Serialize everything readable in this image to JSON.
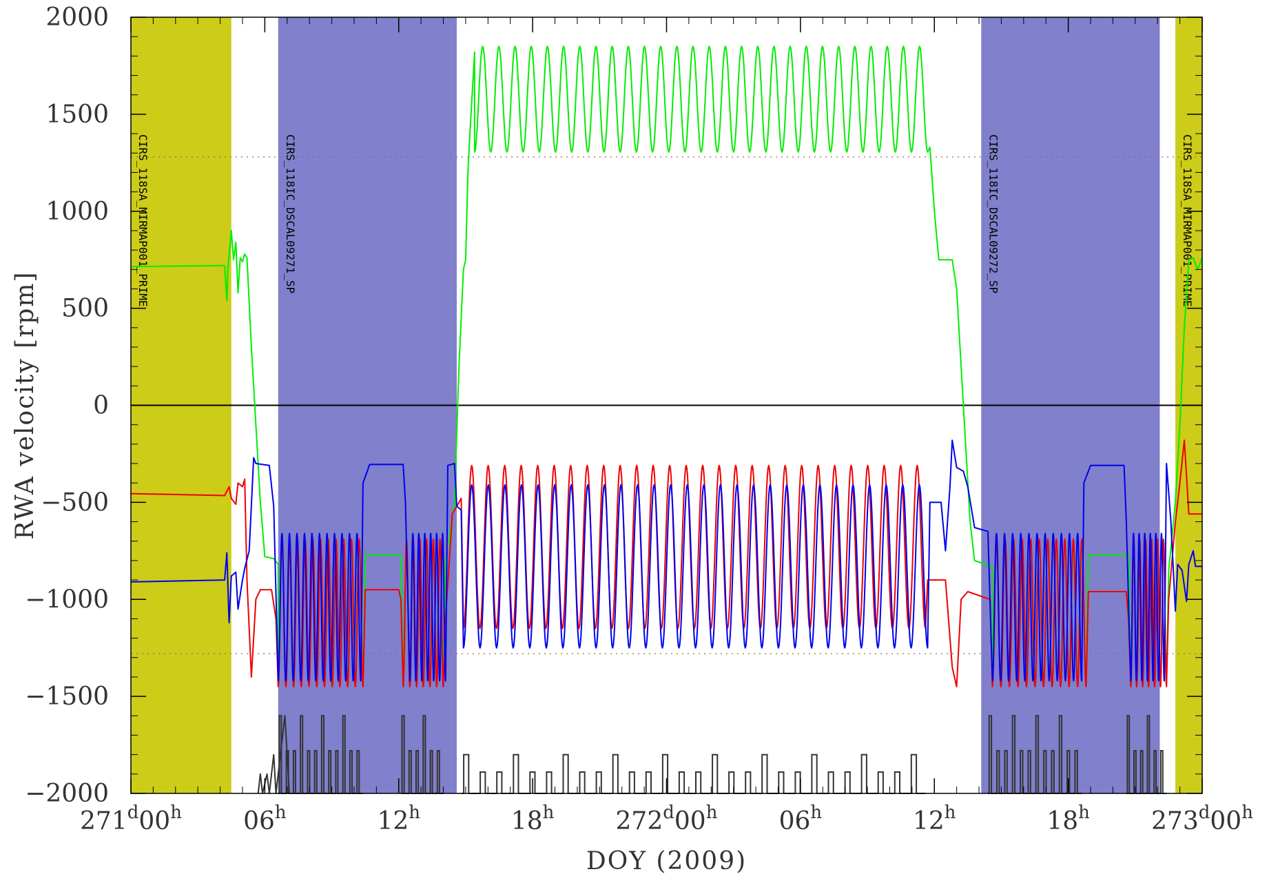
{
  "chart_data": {
    "type": "line",
    "title": "",
    "xlabel": "DOY (2009)",
    "ylabel": "RWA velocity [rpm]",
    "xlim": [
      "271 00:00",
      "273 00:00"
    ],
    "ylim": [
      -2000,
      2000
    ],
    "y_ticks": [
      {
        "value": 2000,
        "label": "2000"
      },
      {
        "value": 1500,
        "label": "1500"
      },
      {
        "value": 1000,
        "label": "1000"
      },
      {
        "value": 500,
        "label": "500"
      },
      {
        "value": 0,
        "label": "0"
      },
      {
        "value": -500,
        "label": "−500"
      },
      {
        "value": -1000,
        "label": "−1000"
      },
      {
        "value": -1500,
        "label": "−1500"
      },
      {
        "value": -2000,
        "label": "−2000"
      }
    ],
    "x_ticks": [
      {
        "hour": 0,
        "pre": "271",
        "sup1": "d",
        "mid": "00",
        "sup2": "h"
      },
      {
        "hour": 6,
        "pre": "",
        "sup1": "",
        "mid": "06",
        "sup2": "h"
      },
      {
        "hour": 12,
        "pre": "",
        "sup1": "",
        "mid": "12",
        "sup2": "h"
      },
      {
        "hour": 18,
        "pre": "",
        "sup1": "",
        "mid": "18",
        "sup2": "h"
      },
      {
        "hour": 24,
        "pre": "272",
        "sup1": "d",
        "mid": "00",
        "sup2": "h"
      },
      {
        "hour": 30,
        "pre": "",
        "sup1": "",
        "mid": "06",
        "sup2": "h"
      },
      {
        "hour": 36,
        "pre": "",
        "sup1": "",
        "mid": "12",
        "sup2": "h"
      },
      {
        "hour": 42,
        "pre": "",
        "sup1": "",
        "mid": "18",
        "sup2": "h"
      },
      {
        "hour": 48,
        "pre": "273",
        "sup1": "d",
        "mid": "00",
        "sup2": "h"
      }
    ],
    "bands": [
      {
        "start": 0.0,
        "end": 4.5,
        "color": "#cccc19",
        "label": "CIRS_118SA_MIRMAP001_PRIME"
      },
      {
        "start": 6.6,
        "end": 14.6,
        "color": "#8080cc",
        "label": "CIRS_118IC_DSCAL09271_SP"
      },
      {
        "start": 38.1,
        "end": 46.1,
        "color": "#8080cc",
        "label": "CIRS_118IC_DSCAL09272_SP"
      },
      {
        "start": 46.8,
        "end": 48.0,
        "color": "#cccc19",
        "label": "CIRS_118SA_MIRMAP001_PRIME"
      }
    ],
    "reference_lines": [
      {
        "y": 0,
        "style": "solid",
        "color": "#000000"
      },
      {
        "y": 1280,
        "style": "dotted",
        "color": "#996666"
      },
      {
        "y": -1280,
        "style": "dotted",
        "color": "#996666"
      }
    ],
    "series": [
      {
        "color": "#00ee00",
        "points": [
          [
            0,
            715
          ],
          [
            4.2,
            720
          ],
          [
            4.3,
            540
          ],
          [
            4.35,
            710
          ],
          [
            4.5,
            900
          ],
          [
            4.6,
            750
          ],
          [
            4.7,
            840
          ],
          [
            4.8,
            580
          ],
          [
            4.9,
            760
          ],
          [
            5.0,
            740
          ],
          [
            5.1,
            780
          ],
          [
            5.2,
            760
          ],
          [
            5.4,
            300
          ],
          [
            5.6,
            -100
          ],
          [
            5.8,
            -500
          ],
          [
            6.0,
            -780
          ],
          [
            6.4,
            -790
          ],
          [
            6.6,
            -820
          ],
          {
            "osc": [
              6.6,
              10.4,
              11,
              -1440,
              -700
            ]
          },
          [
            10.5,
            -770
          ],
          [
            12.0,
            -770
          ],
          [
            12.1,
            -780
          ],
          {
            "osc": [
              12.2,
              14.0,
              6,
              -1440,
              -700
            ]
          },
          [
            14.1,
            -800
          ],
          [
            14.5,
            -500
          ],
          [
            14.7,
            200
          ],
          [
            14.9,
            700
          ],
          [
            15.0,
            750
          ],
          [
            15.1,
            1200
          ],
          [
            15.2,
            1420
          ],
          [
            15.4,
            1820
          ],
          {
            "osc": [
              15.4,
              35.7,
              28,
              1305,
              1850
            ]
          },
          [
            35.8,
            1330
          ],
          [
            36.0,
            1000
          ],
          [
            36.2,
            750
          ],
          [
            36.8,
            750
          ],
          [
            37.0,
            600
          ],
          [
            37.2,
            200
          ],
          [
            37.4,
            -200
          ],
          [
            37.6,
            -600
          ],
          [
            37.8,
            -800
          ],
          [
            38.3,
            -820
          ],
          [
            38.6,
            -830
          ],
          {
            "osc": [
              38.6,
              42.8,
              11,
              -1440,
              -700
            ]
          },
          [
            42.9,
            -770
          ],
          [
            44.6,
            -770
          ],
          [
            44.7,
            -780
          ],
          {
            "osc": [
              44.8,
              46.4,
              6,
              -1440,
              -700
            ]
          },
          [
            46.5,
            -850
          ],
          [
            46.8,
            -500
          ],
          [
            47.0,
            -100
          ],
          [
            47.2,
            400
          ],
          [
            47.4,
            750
          ],
          [
            47.6,
            760
          ],
          [
            47.8,
            700
          ],
          [
            48.0,
            760
          ]
        ]
      },
      {
        "color": "#ee0000",
        "points": [
          [
            0,
            -455
          ],
          [
            4.2,
            -465
          ],
          [
            4.4,
            -420
          ],
          [
            4.5,
            -480
          ],
          [
            4.7,
            -510
          ],
          [
            4.8,
            -400
          ],
          [
            5.0,
            -420
          ],
          [
            5.1,
            -380
          ],
          [
            5.2,
            -900
          ],
          [
            5.4,
            -1400
          ],
          [
            5.6,
            -1000
          ],
          [
            5.8,
            -950
          ],
          [
            6.3,
            -950
          ],
          [
            6.5,
            -1100
          ],
          {
            "osc": [
              6.6,
              10.4,
              11,
              -1450,
              -690
            ]
          },
          [
            10.5,
            -950
          ],
          [
            12.0,
            -950
          ],
          [
            12.1,
            -1000
          ],
          {
            "osc": [
              12.2,
              14.0,
              6,
              -1450,
              -690
            ]
          },
          [
            14.1,
            -1100
          ],
          [
            14.4,
            -560
          ],
          [
            14.8,
            -480
          ],
          {
            "osc": [
              14.9,
              35.6,
              28,
              -1150,
              -310
            ]
          },
          [
            35.7,
            -900
          ],
          [
            36.5,
            -900
          ],
          [
            36.8,
            -1350
          ],
          [
            37.0,
            -1450
          ],
          [
            37.2,
            -1000
          ],
          [
            37.5,
            -960
          ],
          [
            38.5,
            -1000
          ],
          {
            "osc": [
              38.6,
              42.8,
              11,
              -1450,
              -690
            ]
          },
          [
            42.9,
            -960
          ],
          [
            44.6,
            -960
          ],
          [
            44.7,
            -1100
          ],
          {
            "osc": [
              44.8,
              46.4,
              6,
              -1450,
              -690
            ]
          },
          [
            46.5,
            -1000
          ],
          [
            46.8,
            -600
          ],
          [
            47.0,
            -400
          ],
          [
            47.2,
            -180
          ],
          [
            47.4,
            -560
          ],
          [
            48.0,
            -560
          ]
        ]
      },
      {
        "color": "#0000ee",
        "points": [
          [
            0,
            -910
          ],
          [
            4.2,
            -900
          ],
          [
            4.3,
            -760
          ],
          [
            4.4,
            -1120
          ],
          [
            4.5,
            -880
          ],
          [
            4.7,
            -860
          ],
          [
            4.8,
            -1050
          ],
          [
            5.0,
            -900
          ],
          [
            5.1,
            -840
          ],
          [
            5.3,
            -750
          ],
          [
            5.5,
            -270
          ],
          [
            5.6,
            -300
          ],
          [
            6.2,
            -310
          ],
          [
            6.4,
            -520
          ],
          {
            "osc": [
              6.6,
              10.3,
              11,
              -1420,
              -660
            ]
          },
          [
            10.4,
            -400
          ],
          [
            10.7,
            -305
          ],
          [
            12.2,
            -305
          ],
          [
            12.3,
            -500
          ],
          {
            "osc": [
              12.5,
              14.1,
              6,
              -1420,
              -660
            ]
          },
          [
            14.2,
            -310
          ],
          [
            14.5,
            -300
          ],
          [
            14.6,
            -520
          ],
          [
            14.8,
            -540
          ],
          {
            "osc": [
              14.9,
              35.7,
              28,
              -1250,
              -410
            ]
          },
          [
            35.8,
            -500
          ],
          [
            36.3,
            -500
          ],
          [
            36.5,
            -750
          ],
          [
            36.7,
            -420
          ],
          [
            36.8,
            -180
          ],
          [
            37.0,
            -320
          ],
          [
            37.3,
            -340
          ],
          [
            37.5,
            -420
          ],
          [
            37.8,
            -630
          ],
          [
            38.4,
            -650
          ],
          {
            "osc": [
              38.6,
              42.6,
              11,
              -1420,
              -660
            ]
          },
          [
            42.7,
            -400
          ],
          [
            43.0,
            -310
          ],
          [
            44.5,
            -310
          ],
          [
            44.6,
            -600
          ],
          {
            "osc": [
              44.8,
              46.3,
              6,
              -1420,
              -660
            ]
          },
          [
            46.4,
            -300
          ],
          [
            46.6,
            -600
          ],
          [
            46.8,
            -1060
          ],
          [
            46.9,
            -820
          ],
          [
            47.1,
            -850
          ],
          [
            47.3,
            -1010
          ],
          [
            47.4,
            -820
          ],
          [
            47.6,
            -750
          ],
          [
            47.7,
            -830
          ],
          [
            48.0,
            -830
          ]
        ]
      },
      {
        "color": "#333333",
        "points": [
          [
            5.7,
            -2000
          ],
          [
            5.8,
            -1900
          ],
          [
            5.9,
            -2000
          ],
          [
            6.1,
            -1900
          ],
          [
            6.2,
            -2000
          ],
          [
            6.4,
            -1800
          ],
          [
            6.5,
            -2000
          ],
          [
            6.9,
            -1600
          ],
          [
            7.0,
            -1800
          ],
          [
            7.1,
            -2000
          ]
        ]
      }
    ],
    "event_spikes": [
      {
        "start": 6.6,
        "end": 10.4,
        "count": 12,
        "base": -2000,
        "top": -1600
      },
      {
        "start": 12.1,
        "end": 14.0,
        "count": 6,
        "base": -2000,
        "top": -1600
      },
      {
        "start": 14.8,
        "end": 35.6,
        "count": 28,
        "base": -2000,
        "top": -1800
      },
      {
        "start": 38.4,
        "end": 42.6,
        "count": 12,
        "base": -2000,
        "top": -1600
      },
      {
        "start": 44.6,
        "end": 46.4,
        "count": 6,
        "base": -2000,
        "top": -1600
      }
    ]
  }
}
